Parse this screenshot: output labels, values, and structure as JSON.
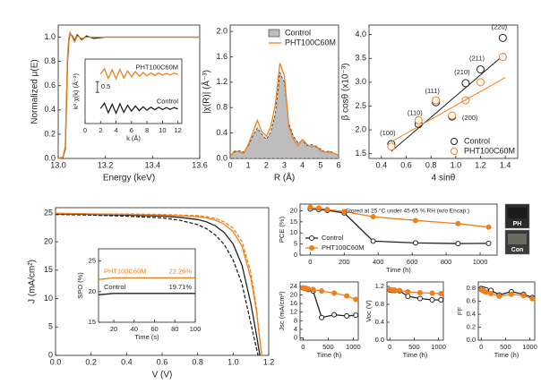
{
  "chart_data": [
    {
      "type": "line",
      "x_label": "Energy (keV)",
      "y_label": "Normalized μ(E)",
      "xlim": [
        13.0,
        13.6
      ],
      "ylim": [
        0,
        1.1
      ],
      "xticks": [
        {
          "value": 13,
          "label": "13.0"
        },
        13.2,
        13.4,
        13.6
      ],
      "yticks": [
        {
          "value": 0,
          "label": "0.0"
        },
        0.2,
        0.4,
        0.6,
        0.8,
        {
          "value": 1,
          "label": "1.0"
        }
      ],
      "x": [
        13.0,
        13.02,
        13.03,
        13.035,
        13.04,
        13.045,
        13.05,
        13.06,
        13.07,
        13.08,
        13.1,
        13.12,
        13.15,
        13.2,
        13.3,
        13.4,
        13.5,
        13.6
      ],
      "series": [
        {
          "color": "#222222",
          "style": "line",
          "values": [
            0.0,
            0.01,
            0.08,
            0.45,
            0.82,
            0.97,
            1.03,
            1.01,
            0.97,
            1.02,
            0.98,
            1.01,
            0.99,
            1.0,
            1.0,
            1.0,
            1.0,
            1.0
          ]
        },
        {
          "color": "#f07f1a",
          "style": "line",
          "values": [
            0.0,
            0.01,
            0.1,
            0.5,
            0.86,
            0.99,
            1.04,
            1.0,
            0.96,
            1.01,
            0.99,
            1.0,
            1.0,
            1.0,
            1.0,
            1.0,
            1.0,
            1.0
          ]
        }
      ]
    },
    {
      "type": "line",
      "x_label": "k (Å)",
      "y_label": "k²·χ(k) (Å⁻²)",
      "xlim": [
        0,
        12.5
      ],
      "ylim": [
        -1.5,
        1.5
      ],
      "xticks": [
        0,
        2,
        4,
        6,
        8,
        10,
        12
      ],
      "legend": "inline",
      "scale_bar": 0.5,
      "x": [
        2,
        2.5,
        3,
        3.5,
        4,
        4.5,
        5,
        5.5,
        6,
        6.5,
        7,
        7.5,
        8,
        8.5,
        9,
        9.5,
        10,
        10.5,
        11,
        11.5,
        12
      ],
      "series": [
        {
          "name": "PHT100C60M",
          "color": "#f07f1a",
          "style": "line",
          "values": [
            0.8,
            1.05,
            0.6,
            1.0,
            0.58,
            1.02,
            0.62,
            0.95,
            0.68,
            0.92,
            0.7,
            0.88,
            0.72,
            0.86,
            0.74,
            0.86,
            0.75,
            0.84,
            0.76,
            0.84,
            0.78
          ]
        },
        {
          "name": "Control",
          "color": "#222222",
          "style": "line",
          "values": [
            -0.8,
            -0.55,
            -1.0,
            -0.6,
            -1.02,
            -0.58,
            -0.98,
            -0.65,
            -0.92,
            -0.68,
            -0.9,
            -0.72,
            -0.88,
            -0.74,
            -0.86,
            -0.74,
            -0.85,
            -0.76,
            -0.84,
            -0.76,
            -0.82
          ]
        }
      ]
    },
    {
      "type": "line",
      "x_label": "R (Å)",
      "y_label": "|χ(R)| (Å⁻³)",
      "xlim": [
        0,
        6
      ],
      "ylim": [
        0,
        2.1
      ],
      "xticks": [
        0,
        1,
        2,
        3,
        4,
        5,
        6
      ],
      "yticks": [
        {
          "value": 0,
          "label": "0.0"
        },
        0.4,
        0.8,
        1.2,
        1.6,
        {
          "value": 2,
          "label": "2.0"
        }
      ],
      "legend": "upper right",
      "x": [
        0,
        0.25,
        0.5,
        0.75,
        1,
        1.25,
        1.5,
        1.75,
        2,
        2.25,
        2.5,
        2.75,
        3,
        3.25,
        3.5,
        3.75,
        4,
        4.25,
        4.5,
        4.75,
        5,
        5.25,
        5.5,
        5.75,
        6
      ],
      "series": [
        {
          "name": "Control",
          "color": "#bdbdbd",
          "style": "area",
          "values": [
            0.05,
            0.1,
            0.12,
            0.1,
            0.2,
            0.35,
            0.48,
            0.38,
            0.3,
            0.42,
            0.7,
            1.35,
            1.2,
            0.55,
            0.35,
            0.25,
            0.28,
            0.2,
            0.22,
            0.18,
            0.15,
            0.1,
            0.12,
            0.08,
            0.05
          ]
        },
        {
          "name": "PHT100C60M",
          "color": "#f07f1a",
          "style": "line",
          "values": [
            0.04,
            0.12,
            0.1,
            0.08,
            0.22,
            0.4,
            0.6,
            0.42,
            0.35,
            0.5,
            0.85,
            1.5,
            1.3,
            0.5,
            0.3,
            0.2,
            0.3,
            0.22,
            0.18,
            0.2,
            0.12,
            0.1,
            0.1,
            0.08,
            0.05
          ]
        }
      ]
    },
    {
      "type": "scatter",
      "x_label": "4 sinθ",
      "y_label": "β cosθ (x10⁻³)",
      "xlim": [
        0.3,
        1.5
      ],
      "ylim": [
        1.4,
        4.2
      ],
      "xticks": [
        0.4,
        0.6,
        0.8,
        {
          "value": 1,
          "label": "1.0"
        },
        1.2,
        1.4
      ],
      "yticks": [
        1.5,
        {
          "value": 2,
          "label": "2.0"
        },
        2.5,
        {
          "value": 3,
          "label": "3.0"
        },
        3.5,
        {
          "value": 4,
          "label": "4.0"
        }
      ],
      "legend": "lower right",
      "series": [
        {
          "name": "Control",
          "color": "#222222",
          "markers": "open",
          "x": [
            0.48,
            0.7,
            0.84,
            0.97,
            1.08,
            1.2,
            1.38
          ],
          "values": [
            1.7,
            2.12,
            2.58,
            2.28,
            2.98,
            3.27,
            3.93
          ],
          "fit_x": [
            0.48,
            1.4
          ],
          "fit_values": [
            1.55,
            3.6
          ],
          "point_labels": [
            "(100)",
            "(110)",
            "(111)",
            "(200)",
            "(210)",
            "(211)",
            "(220)"
          ]
        },
        {
          "name": "PHT100C60M",
          "color": "#f07f1a",
          "markers": "open",
          "x": [
            0.48,
            0.7,
            0.84,
            0.97,
            1.08,
            1.2,
            1.38
          ],
          "values": [
            1.65,
            2.2,
            2.62,
            2.3,
            2.62,
            3.0,
            3.53
          ],
          "fit_x": [
            0.48,
            1.4
          ],
          "fit_values": [
            1.75,
            3.1
          ]
        }
      ]
    },
    {
      "type": "line",
      "x_label": "V (V)",
      "y_label": "J (mA/cm²)",
      "xlim": [
        0,
        1.2
      ],
      "ylim": [
        0,
        26
      ],
      "xticks": [
        {
          "value": 0,
          "label": "0.0"
        },
        0.2,
        0.4,
        0.6,
        0.8,
        {
          "value": 1,
          "label": "1.0"
        },
        1.2
      ],
      "yticks": [
        0,
        5,
        10,
        15,
        20,
        25
      ],
      "series": [
        {
          "color": "#222222",
          "style": "line",
          "x": [
            0,
            0.2,
            0.4,
            0.6,
            0.7,
            0.8,
            0.85,
            0.9,
            0.95,
            1.0,
            1.05,
            1.1,
            1.13,
            1.15
          ],
          "values": [
            24.9,
            24.8,
            24.7,
            24.5,
            24.3,
            23.9,
            23.5,
            22.8,
            21.6,
            19.6,
            15.8,
            9.0,
            3.8,
            0
          ]
        },
        {
          "color": "#222222",
          "style": "dash",
          "x": [
            0,
            0.2,
            0.4,
            0.6,
            0.7,
            0.8,
            0.85,
            0.9,
            0.95,
            1.0,
            1.05,
            1.1,
            1.14
          ],
          "values": [
            24.8,
            24.7,
            24.5,
            24.2,
            23.8,
            23.0,
            22.3,
            21.2,
            19.5,
            16.8,
            12.5,
            5.5,
            0
          ]
        },
        {
          "color": "#f07f1a",
          "style": "line",
          "x": [
            0,
            0.2,
            0.4,
            0.6,
            0.7,
            0.8,
            0.85,
            0.9,
            0.95,
            1.0,
            1.05,
            1.1,
            1.13,
            1.16
          ],
          "values": [
            25.0,
            24.9,
            24.8,
            24.7,
            24.6,
            24.4,
            24.2,
            23.8,
            23.1,
            21.8,
            19.2,
            13.5,
            8.0,
            0
          ]
        },
        {
          "color": "#f07f1a",
          "style": "dash",
          "x": [
            0,
            0.2,
            0.4,
            0.6,
            0.7,
            0.8,
            0.85,
            0.9,
            0.95,
            1.0,
            1.05,
            1.1,
            1.13,
            1.16
          ],
          "values": [
            25.0,
            24.9,
            24.9,
            24.8,
            24.7,
            24.6,
            24.4,
            24.1,
            23.5,
            22.4,
            20.0,
            14.5,
            8.5,
            0
          ]
        }
      ]
    },
    {
      "type": "line",
      "x_label": "Time (s)",
      "y_label": "SPO (%)",
      "xlim": [
        5,
        100
      ],
      "ylim": [
        15,
        27
      ],
      "xticks": [
        20,
        40,
        60,
        80,
        100
      ],
      "yticks": [
        15,
        20,
        25
      ],
      "legend": "inline",
      "x": [
        5,
        20,
        40,
        60,
        80,
        100
      ],
      "series": [
        {
          "name": "PHT100C60M",
          "color": "#f07f1a",
          "style": "line",
          "values": [
            22.0,
            22.26,
            22.26,
            22.26,
            22.26,
            22.26
          ],
          "end_label": "22.26%"
        },
        {
          "name": "Control",
          "color": "#222222",
          "style": "line",
          "values": [
            19.5,
            19.71,
            19.71,
            19.71,
            19.71,
            19.71
          ],
          "end_label": "19.71%"
        }
      ]
    },
    {
      "type": "line",
      "x_label": "Time (h)",
      "y_label": "PCE (%)",
      "xlim": [
        -60,
        1100
      ],
      "ylim": [
        0,
        23
      ],
      "xticks": [
        0,
        200,
        400,
        600,
        800,
        1000
      ],
      "yticks": [
        0,
        5,
        10,
        15,
        20
      ],
      "legend": "lower left",
      "annotation": "Stored at 25 °C under 45-65 % RH (w/o Encap.)",
      "photo_labels": [
        "PH",
        "Con"
      ],
      "x": [
        0,
        50,
        100,
        200,
        370,
        620,
        870,
        1050
      ],
      "series": [
        {
          "name": "Control",
          "color": "#222222",
          "style": "line",
          "markers": "open",
          "values": [
            20.8,
            20.6,
            20.2,
            19.0,
            6.3,
            5.5,
            5.2,
            5.3
          ]
        },
        {
          "name": "PHT100C60M",
          "color": "#f07f1a",
          "style": "line",
          "markers": "filled",
          "values": [
            21.6,
            21.2,
            20.6,
            19.6,
            17.3,
            15.6,
            14.2,
            12.6
          ]
        }
      ]
    },
    {
      "type": "line",
      "x_label": "Time (h)",
      "y_label": "Jsc (mA/cm²)",
      "xlim": [
        -60,
        1100
      ],
      "ylim": [
        -1,
        26
      ],
      "xticks": [
        0,
        500,
        1000
      ],
      "yticks": [
        0,
        4,
        8,
        12,
        16,
        20,
        24
      ],
      "x": [
        0,
        50,
        100,
        200,
        370,
        620,
        870,
        1050
      ],
      "series": [
        {
          "color": "#222222",
          "style": "line",
          "markers": "open",
          "values": [
            23.2,
            23.0,
            22.5,
            21.8,
            9.5,
            10.8,
            10.2,
            10.6
          ]
        },
        {
          "color": "#f07f1a",
          "style": "line",
          "markers": "filled",
          "values": [
            23.3,
            23.1,
            22.8,
            22.5,
            21.8,
            20.8,
            19.5,
            17.9
          ]
        }
      ]
    },
    {
      "type": "line",
      "x_label": "Time (h)",
      "y_label": "Voc (V)",
      "xlim": [
        -60,
        1100
      ],
      "ylim": [
        0,
        1.3
      ],
      "xticks": [
        0,
        500,
        1000
      ],
      "yticks": [
        {
          "value": 0,
          "label": "0.0"
        },
        0.4,
        0.8,
        1.2
      ],
      "x": [
        0,
        50,
        100,
        200,
        370,
        620,
        870,
        1050
      ],
      "series": [
        {
          "color": "#222222",
          "style": "line",
          "markers": "open",
          "values": [
            1.12,
            1.11,
            1.11,
            1.1,
            0.98,
            0.93,
            0.9,
            0.9
          ]
        },
        {
          "color": "#f07f1a",
          "style": "line",
          "markers": "filled",
          "values": [
            1.13,
            1.12,
            1.12,
            1.11,
            1.08,
            1.06,
            1.05,
            1.04
          ]
        }
      ]
    },
    {
      "type": "line",
      "x_label": "Time (h)",
      "y_label": "FF",
      "xlim": [
        -60,
        1100
      ],
      "ylim": [
        0,
        0.9
      ],
      "xticks": [
        0,
        500,
        1000
      ],
      "yticks": [
        {
          "value": 0,
          "label": "0.0"
        },
        0.2,
        0.4,
        0.6,
        0.8
      ],
      "x": [
        0,
        50,
        100,
        200,
        370,
        620,
        870,
        1050
      ],
      "series": [
        {
          "color": "#222222",
          "style": "line",
          "markers": "open",
          "values": [
            0.8,
            0.79,
            0.78,
            0.77,
            0.7,
            0.75,
            0.71,
            0.66
          ]
        },
        {
          "color": "#f07f1a",
          "style": "line",
          "markers": "filled",
          "values": [
            0.78,
            0.76,
            0.74,
            0.72,
            0.68,
            0.71,
            0.69,
            0.64
          ]
        }
      ]
    }
  ]
}
